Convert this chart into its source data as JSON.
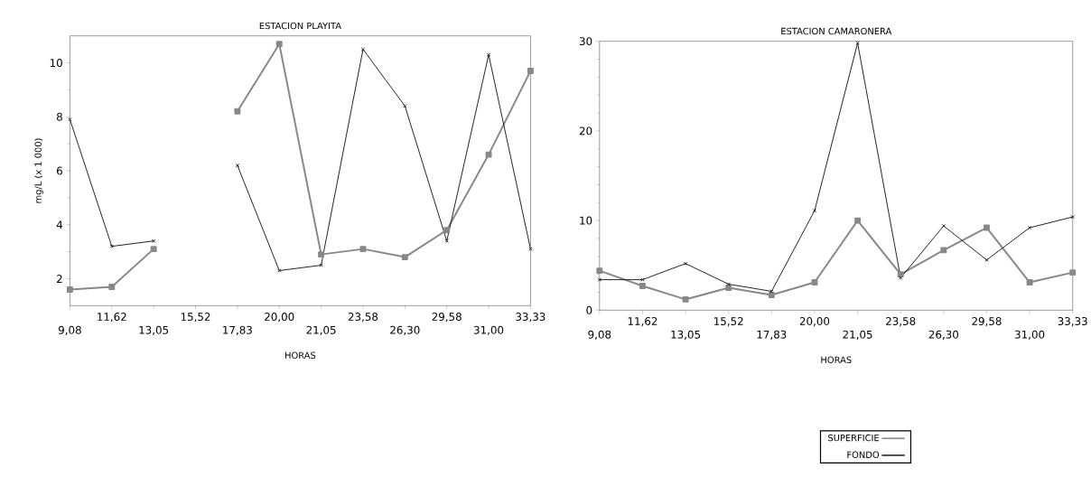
{
  "chart_data": [
    {
      "type": "line",
      "title": "ESTACION PLAYITA",
      "xlabel": "HORAS",
      "ylabel": "mg/L (x 1 000)",
      "categories": [
        "9,08",
        "11,62",
        "13,05",
        "15,52",
        "17,83",
        "20,00",
        "21,05",
        "23,58",
        "26,30",
        "29,58",
        "31,00",
        "33,33"
      ],
      "ylim": [
        1,
        11
      ],
      "yticks": [
        2,
        4,
        6,
        8,
        10
      ],
      "grid": false,
      "legend": false,
      "line_style": "solid",
      "series": [
        {
          "color": "#888888",
          "marker": "square",
          "values": [
            1.6,
            1.7,
            3.1,
            null,
            8.2,
            10.7,
            2.9,
            3.1,
            2.8,
            3.8,
            6.6,
            9.7
          ]
        },
        {
          "color": "#222222",
          "marker": "cross",
          "values": [
            7.9,
            3.2,
            3.4,
            null,
            6.2,
            2.3,
            2.5,
            10.5,
            8.4,
            3.4,
            10.3,
            3.1
          ]
        }
      ]
    },
    {
      "type": "line",
      "title": "ESTACION CAMARONERA",
      "xlabel": "HORAS",
      "categories": [
        "9,08",
        "11,62",
        "13,05",
        "15,52",
        "17,83",
        "20,00",
        "21,05",
        "23,58",
        "26,30",
        "29,58",
        "31,00",
        "33,33"
      ],
      "ylim": [
        0,
        30
      ],
      "yticks": [
        0,
        10,
        20,
        30
      ],
      "grid": false,
      "legend": "bottom right",
      "line_style": "solid",
      "series": [
        {
          "name": "SUPERFICIE",
          "color": "#888888",
          "marker": "square",
          "values": [
            4.4,
            2.7,
            1.2,
            2.5,
            1.7,
            3.1,
            10.0,
            4.0,
            6.7,
            9.2,
            3.1,
            4.2
          ]
        },
        {
          "name": "FONDO",
          "color": "#222222",
          "marker": "cross",
          "values": [
            3.4,
            3.4,
            5.2,
            2.9,
            2.1,
            11.1,
            29.8,
            3.6,
            9.4,
            5.6,
            9.2,
            10.4
          ]
        }
      ]
    }
  ]
}
